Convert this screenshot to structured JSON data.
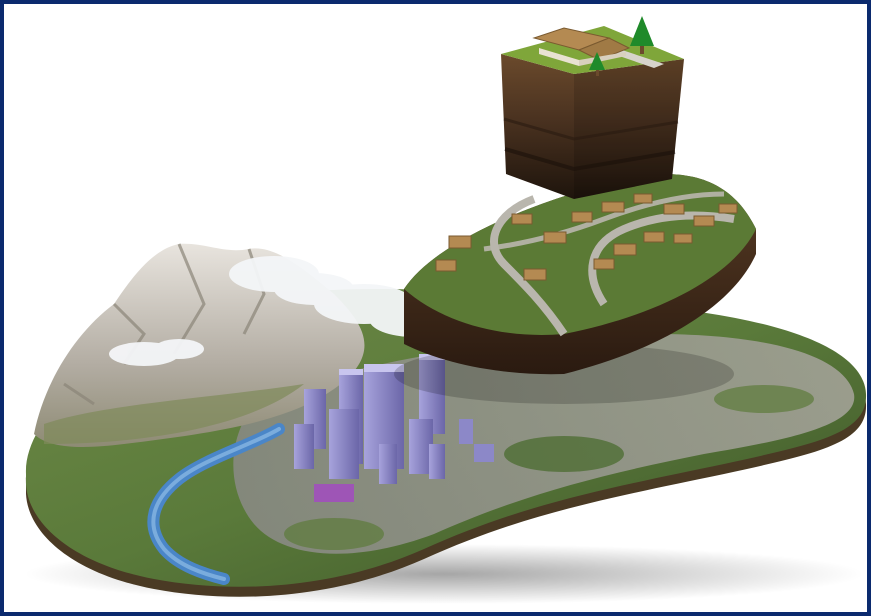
{
  "image": {
    "colors": {
      "frame": "#0b2a6e",
      "background": "#ffffff",
      "terrain_green": "#5a7a3a",
      "terrain_dark": "#3b5228",
      "mountain": "#c9c4bd",
      "river": "#4a86c8",
      "city_gray": "#8f8f8f",
      "skyscraper": "#8c88c8",
      "skyscraper_shade": "#6b66a8",
      "soil": "#5b3a22",
      "soil_dark": "#2a1a10",
      "grass": "#7fa63a",
      "road": "#b9b6ad",
      "roof": "#b48a52",
      "cloud": "#f4f6f8",
      "tree": "#1f8a2a"
    }
  }
}
